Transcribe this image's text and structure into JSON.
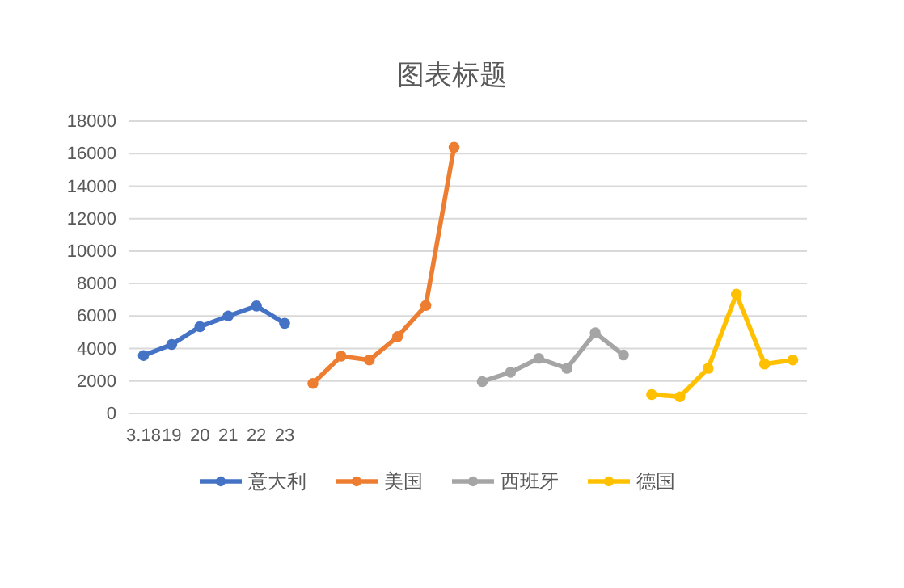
{
  "chart_data": {
    "type": "line",
    "title": "图表标题",
    "categories": [
      "3.18",
      "19",
      "20",
      "21",
      "22",
      "23",
      null,
      null,
      null,
      null,
      null,
      null,
      null,
      null,
      null,
      null,
      null,
      null,
      null,
      null,
      null,
      null,
      null,
      null
    ],
    "series": [
      {
        "name": "意大利",
        "color": "#4472c4",
        "values": [
          3570,
          4250,
          5350,
          6000,
          6620,
          5550,
          null,
          null,
          null,
          null,
          null,
          null,
          null,
          null,
          null,
          null,
          null,
          null,
          null,
          null,
          null,
          null,
          null,
          null
        ]
      },
      {
        "name": "美国",
        "color": "#ed7d31",
        "values": [
          null,
          null,
          null,
          null,
          null,
          null,
          1850,
          3530,
          3290,
          4730,
          6650,
          16390,
          null,
          null,
          null,
          null,
          null,
          null,
          null,
          null,
          null,
          null,
          null,
          null
        ]
      },
      {
        "name": "西班牙",
        "color": "#a5a5a5",
        "values": [
          null,
          null,
          null,
          null,
          null,
          null,
          null,
          null,
          null,
          null,
          null,
          null,
          1967,
          2538,
          3390,
          2780,
          4970,
          3600,
          null,
          null,
          null,
          null,
          null,
          null
        ]
      },
      {
        "name": "德国",
        "color": "#ffc000",
        "values": [
          null,
          null,
          null,
          null,
          null,
          null,
          null,
          null,
          null,
          null,
          null,
          null,
          null,
          null,
          null,
          null,
          null,
          null,
          1170,
          1030,
          2780,
          7340,
          3050,
          3290
        ]
      }
    ],
    "ylim": [
      0,
      18000
    ],
    "yticks": [
      0,
      2000,
      4000,
      6000,
      8000,
      10000,
      12000,
      14000,
      16000,
      18000
    ],
    "grid": "y",
    "legend": "bottom",
    "marker": "circle",
    "line_style": "solid"
  }
}
